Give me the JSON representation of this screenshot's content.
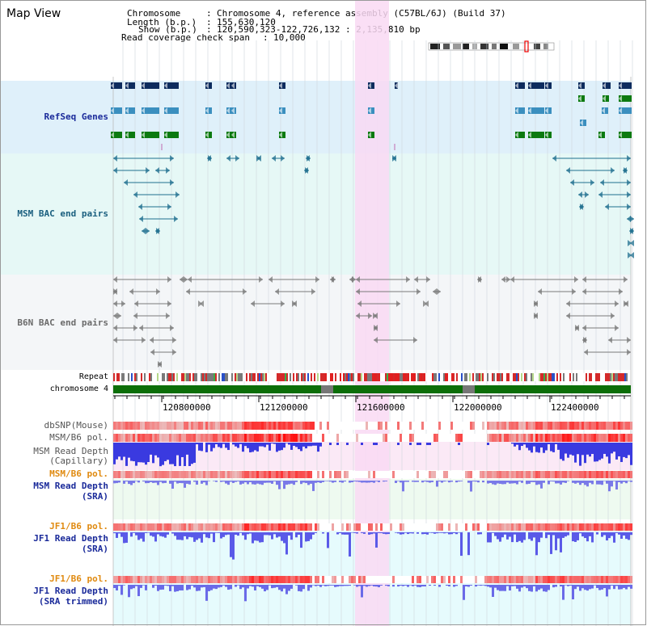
{
  "header": {
    "title": "Map View",
    "chromosome_label": "Chromosome",
    "chromosome_value": "Chromosome 4, reference assembly (C57BL/6J) (Build 37)",
    "length_label": "Length (b.p.)",
    "length_value": "155,630,120",
    "show_label": "Show (b.p.)",
    "show_value": "120,590,323-122,726,132 : 2,135,810 bp",
    "coverage_label": "Read coverage check span",
    "coverage_value": "10,000"
  },
  "tracks": {
    "refseq": "RefSeq Genes",
    "msm_bac": "MSM BAC end pairs",
    "b6n_bac": "B6N BAC end pairs",
    "repeat": "Repeat",
    "chromosome": "chromosome 4",
    "dbsnp": "dbSNP(Mouse)",
    "msm_b6_pol_1": "MSM/B6 pol.",
    "msm_depth_cap_1": "MSM Read Depth",
    "msm_depth_cap_2": "(Capillary)",
    "msm_b6_pol_2": "MSM/B6 pol.",
    "msm_depth_sra_1": "MSM Read Depth",
    "msm_depth_sra_2": "(SRA)",
    "jf1_b6_pol_1": "JF1/B6 pol.",
    "jf1_depth_sra_1": "JF1 Read Depth",
    "jf1_depth_sra_2": "(SRA)",
    "jf1_b6_pol_2": "JF1/B6 pol.",
    "jf1_depth_trim_1": "JF1 Read Depth",
    "jf1_depth_trim_2": "(SRA trimmed)"
  },
  "axis": {
    "ticks": [
      "120800000",
      "121200000",
      "121600000",
      "122000000",
      "122400000"
    ]
  },
  "colors": {
    "refseq_bg": "#dff0fa",
    "msm_bg": "#e6f8f6",
    "b6n_bg": "#f4f6f8",
    "highlight": "#f9d9f3",
    "gene_dark": "#0d2c5e",
    "gene_mid": "#3b8fbf",
    "gene_green": "#0c7a10",
    "msm_feature": "#1f6f8f",
    "b6n_feature": "#7a7a7a",
    "label_refseq": "#1a2a9a",
    "label_msm": "#1a5f7f",
    "label_b6n": "#6b6b6b",
    "label_pol": "#e08a10",
    "label_depth": "#1a2a9a"
  }
}
